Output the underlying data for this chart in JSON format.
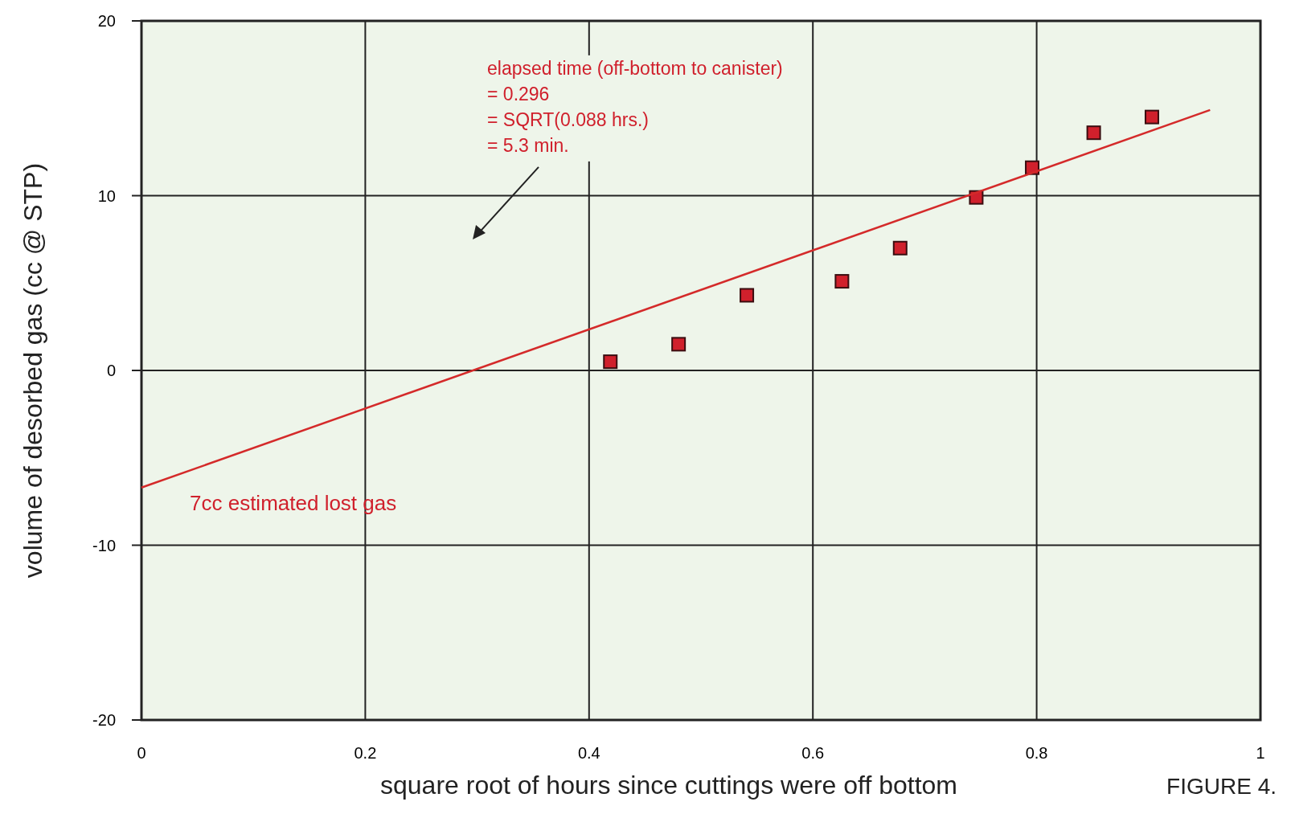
{
  "chart_data": {
    "type": "scatter",
    "xlabel": "square root of hours since cuttings were off bottom",
    "ylabel": "volume of desorbed gas (cc @ STP)",
    "xlim": [
      0,
      1
    ],
    "ylim": [
      -20,
      20
    ],
    "xticks": [
      0,
      0.2,
      0.4,
      0.6,
      0.8,
      1
    ],
    "yticks": [
      -20,
      -10,
      0,
      10,
      20
    ],
    "grid": true,
    "series": [
      {
        "marker": "square",
        "color": "#d0202c",
        "x": [
          0.419,
          0.48,
          0.541,
          0.626,
          0.678,
          0.746,
          0.796,
          0.851,
          0.903
        ],
        "values": [
          0.5,
          1.5,
          4.3,
          5.1,
          7.0,
          9.9,
          11.6,
          13.6,
          14.5
        ]
      },
      {
        "type": "line",
        "color": "#d42a2a",
        "line_style": "solid",
        "x": [
          0,
          0.955
        ],
        "values": [
          -6.7,
          14.9
        ]
      }
    ],
    "annotations": [
      "elapsed time (off-bottom to canister)\n= 0.296\n= SQRT(0.088 hrs.)\n= 5.3 min.",
      "7cc estimated lost gas",
      "FIGURE 4."
    ]
  }
}
